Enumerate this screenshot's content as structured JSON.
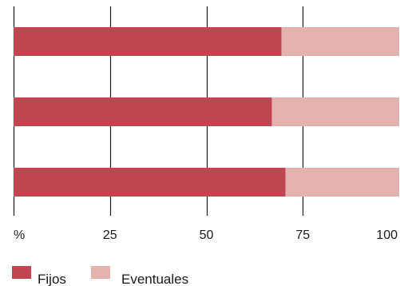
{
  "colors": {
    "fijos": "#bf4650",
    "eventuales": "#e5b1ae",
    "grid": "#1a1a1a"
  },
  "chart_data": {
    "type": "bar",
    "orientation": "horizontal",
    "stacked": true,
    "categories": [
      "",
      "",
      ""
    ],
    "series": [
      {
        "name": "Fijos",
        "values": [
          69.5,
          67,
          70.5
        ]
      },
      {
        "name": "Eventuales",
        "values": [
          30.5,
          33,
          29.5
        ]
      }
    ],
    "xlim": [
      0,
      100
    ],
    "x_unit_label": "%",
    "x_ticks": [
      {
        "value": 25,
        "label": "25"
      },
      {
        "value": 50,
        "label": "50"
      },
      {
        "value": 75,
        "label": "75"
      },
      {
        "value": 100,
        "label": "100"
      }
    ],
    "grid": true,
    "legend": "bottom-left"
  }
}
